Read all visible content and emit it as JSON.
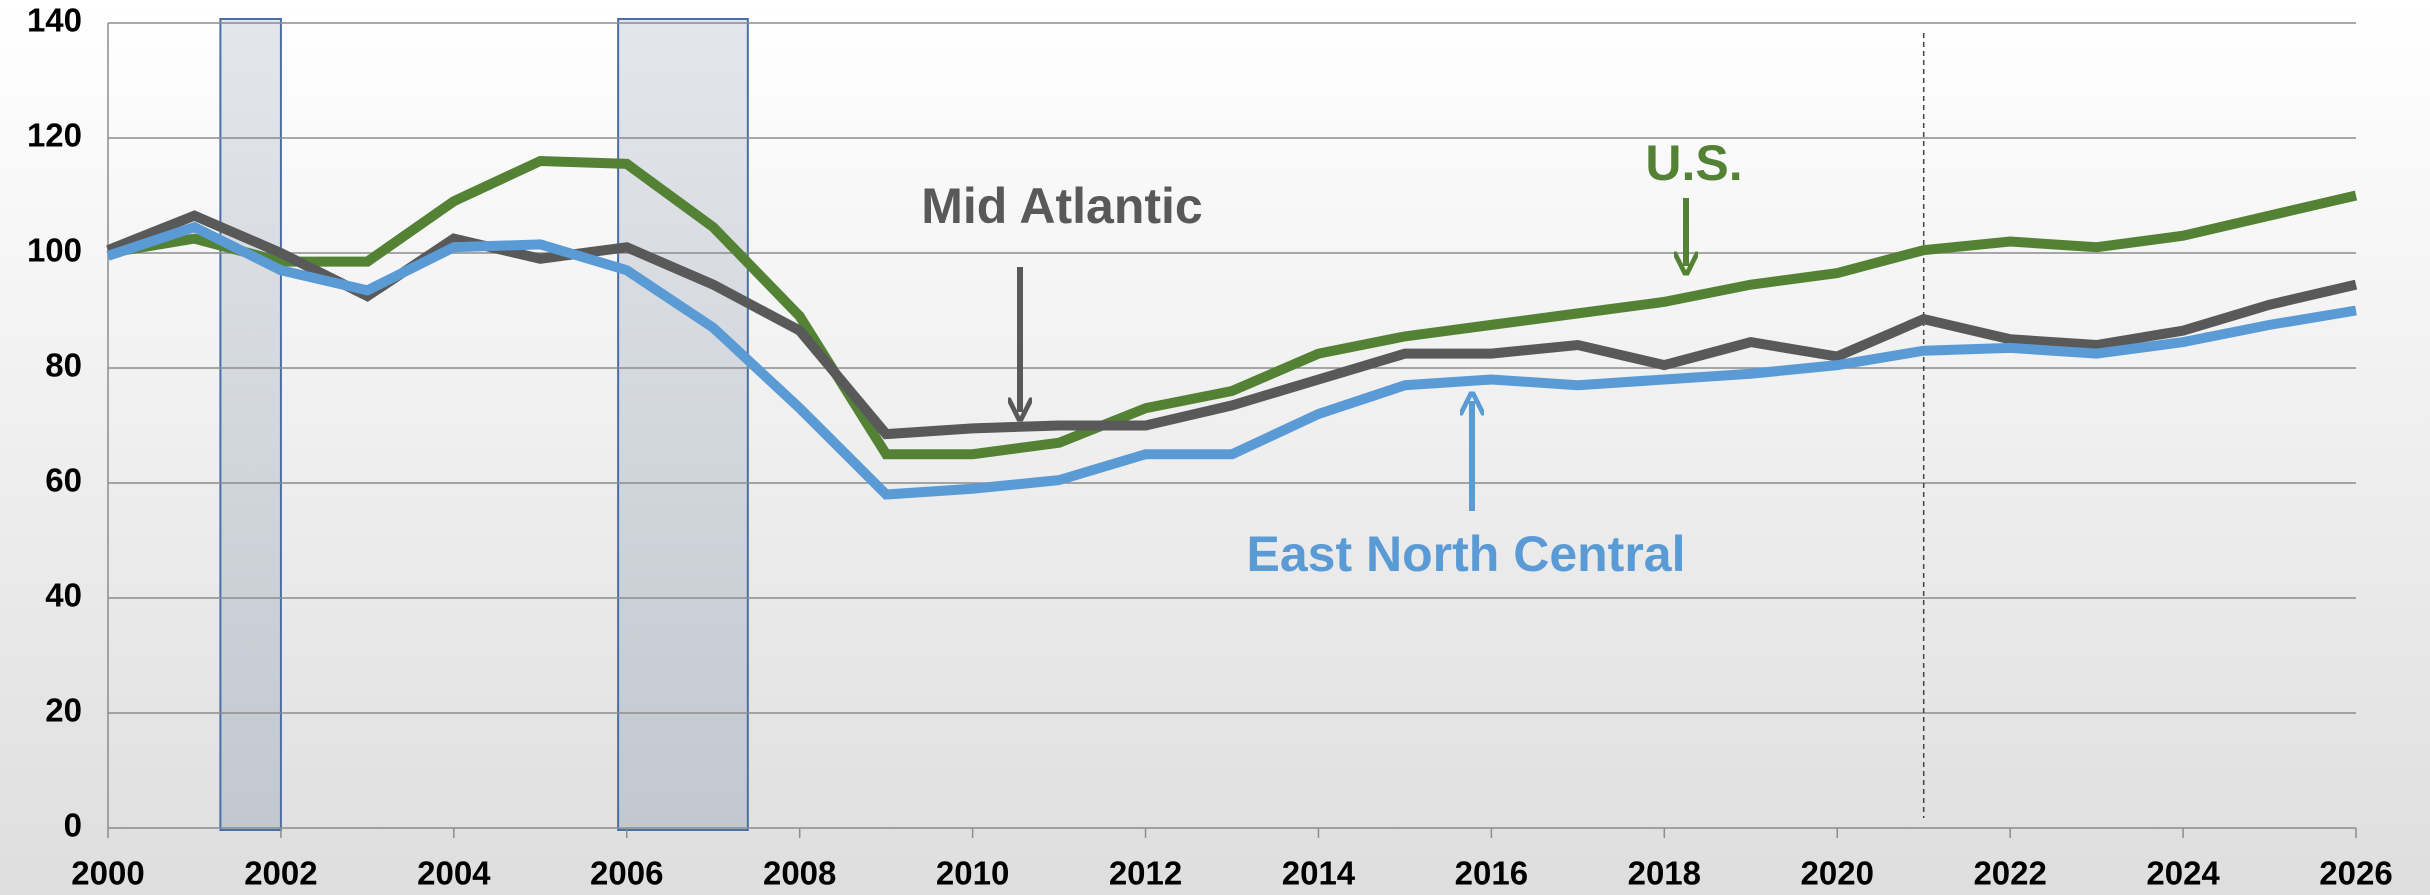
{
  "chart_data": {
    "type": "line",
    "x": [
      2000,
      2001,
      2002,
      2003,
      2004,
      2005,
      2006,
      2007,
      2008,
      2009,
      2010,
      2011,
      2012,
      2013,
      2014,
      2015,
      2016,
      2017,
      2018,
      2019,
      2020,
      2021,
      2022,
      2023,
      2024,
      2025,
      2026
    ],
    "series": [
      {
        "name": "U.S.",
        "color": "#548235",
        "values": [
          100,
          102.5,
          98.5,
          98.5,
          109,
          116,
          115.5,
          104.5,
          89,
          65,
          65,
          67,
          73,
          76,
          82.5,
          85.5,
          87.5,
          89.5,
          91.5,
          94.5,
          96.5,
          100.5,
          102,
          101,
          103,
          106.5,
          110
        ]
      },
      {
        "name": "Mid Atlantic",
        "color": "#595959",
        "values": [
          100.5,
          106.5,
          100,
          92.5,
          102.5,
          99,
          101,
          94.5,
          86.5,
          68.5,
          69.5,
          70,
          70,
          73.5,
          78,
          82.5,
          82.5,
          84,
          80.5,
          84.5,
          82,
          88.5,
          85,
          84,
          86.5,
          91,
          94.5
        ]
      },
      {
        "name": "East North Central",
        "color": "#5b9bd5",
        "values": [
          99.5,
          104.5,
          97,
          93.5,
          101,
          101.5,
          97,
          87,
          73,
          58,
          59,
          60.5,
          65,
          65,
          72,
          77,
          78,
          77,
          78,
          79,
          80.5,
          83,
          83.5,
          82.5,
          84.5,
          87.5,
          90
        ]
      }
    ],
    "shaded_periods": [
      [
        2001.3,
        2002
      ],
      [
        2005.9,
        2007.4
      ]
    ],
    "forecast_start": 2021,
    "xlim": [
      2000,
      2026
    ],
    "xticks": [
      2000,
      2002,
      2004,
      2006,
      2008,
      2010,
      2012,
      2014,
      2016,
      2018,
      2020,
      2022,
      2024,
      2026
    ],
    "ylim": [
      0,
      140
    ],
    "yticks": [
      0,
      20,
      40,
      60,
      80,
      100,
      120,
      140
    ],
    "grid": true
  }
}
